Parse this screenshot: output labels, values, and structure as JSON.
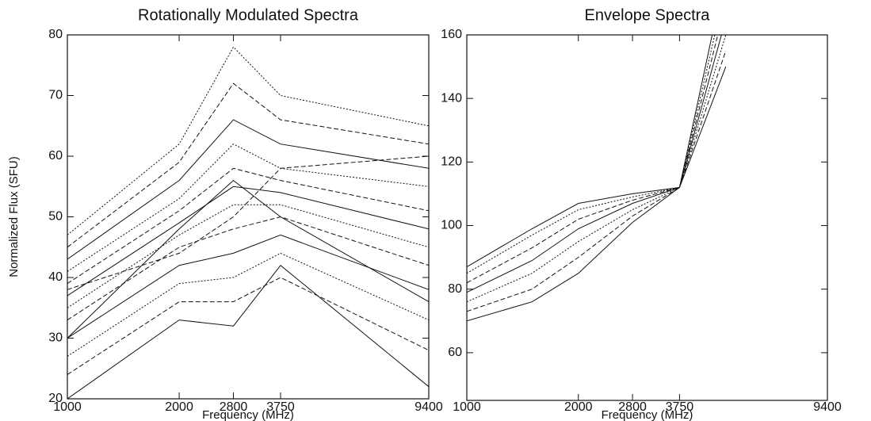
{
  "chart_data": [
    {
      "type": "line",
      "title": "Rotationally Modulated Spectra",
      "xlabel": "Frequency (MHz)",
      "ylabel": "Normalized Flux (SFU)",
      "xscale": "log",
      "xlim": [
        1000,
        9400
      ],
      "xticks": [
        1000,
        2000,
        2800,
        3750,
        9400
      ],
      "ylim": [
        20,
        80
      ],
      "yticks": [
        20,
        30,
        40,
        50,
        60,
        70,
        80
      ],
      "color": "#111111",
      "x": [
        1000,
        2000,
        2800,
        3750,
        9400
      ],
      "series": [
        {
          "values": [
            20,
            33,
            32,
            42,
            22
          ]
        },
        {
          "values": [
            24,
            36,
            36,
            40,
            28
          ]
        },
        {
          "values": [
            27,
            39,
            40,
            44,
            33
          ]
        },
        {
          "values": [
            30,
            42,
            44,
            47,
            38
          ]
        },
        {
          "values": [
            33,
            45,
            48,
            50,
            42
          ]
        },
        {
          "values": [
            35,
            47,
            52,
            52,
            45
          ]
        },
        {
          "values": [
            37,
            49,
            55,
            54,
            48
          ]
        },
        {
          "values": [
            39,
            51,
            58,
            56,
            51
          ]
        },
        {
          "values": [
            41,
            53,
            62,
            58,
            55
          ]
        },
        {
          "values": [
            43,
            56,
            66,
            62,
            58
          ]
        },
        {
          "values": [
            45,
            59,
            72,
            66,
            62
          ]
        },
        {
          "values": [
            47,
            62,
            78,
            70,
            65
          ]
        },
        {
          "values": [
            30,
            48,
            56,
            50,
            36
          ]
        },
        {
          "values": [
            38,
            44,
            50,
            58,
            60
          ]
        }
      ]
    },
    {
      "type": "line",
      "title": "Envelope Spectra",
      "xlabel": "Frequency (MHz)",
      "xscale": "log",
      "xlim": [
        1000,
        9400
      ],
      "xticks": [
        1000,
        2000,
        2800,
        3750,
        9400
      ],
      "ylim": [
        45,
        160
      ],
      "yticks": [
        60,
        80,
        100,
        120,
        140,
        160
      ],
      "color": "#111111",
      "x": [
        1000,
        1500,
        2000,
        2800,
        3750,
        5000
      ],
      "series": [
        {
          "values": [
            70,
            76,
            85,
            101,
            112,
            150
          ]
        },
        {
          "values": [
            73,
            80,
            90,
            103,
            112,
            155
          ]
        },
        {
          "values": [
            76,
            85,
            95,
            105,
            112,
            160
          ]
        },
        {
          "values": [
            79,
            89,
            99,
            107,
            112,
            165
          ]
        },
        {
          "values": [
            82,
            93,
            102,
            108,
            112,
            170
          ]
        },
        {
          "values": [
            85,
            97,
            105,
            109,
            112,
            175
          ]
        },
        {
          "values": [
            87,
            99,
            107,
            110,
            112,
            180
          ]
        }
      ]
    }
  ]
}
